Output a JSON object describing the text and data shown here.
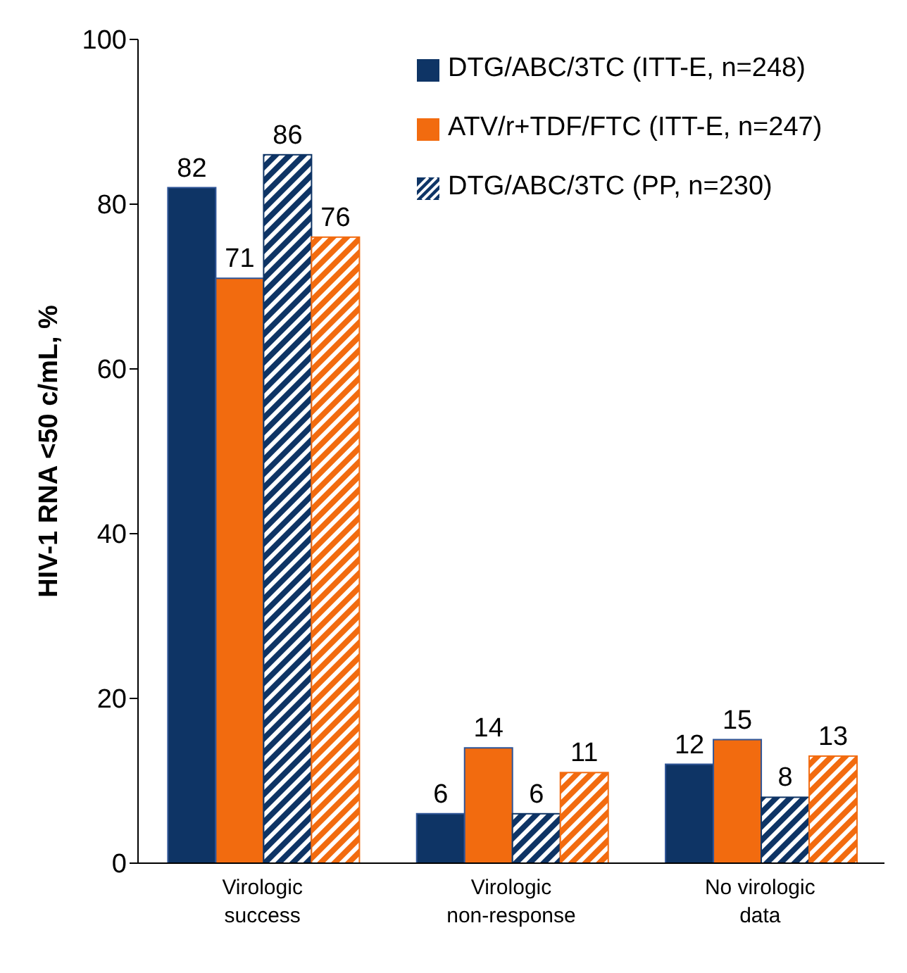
{
  "chart_data": {
    "type": "bar",
    "ylabel": "HIV-1 RNA <50 c/mL, %",
    "categories": [
      "Virologic success",
      "Virologic non-response",
      "No virologic data"
    ],
    "series": [
      {
        "name": "DTG/ABC/3TC (ITT-E, n=248)",
        "color": "#0e3465",
        "values": [
          82,
          6,
          12
        ]
      },
      {
        "name": "ATV/r+TDF/FTC (ITT-E, n=247)",
        "color": "#f26b0f",
        "values": [
          71,
          14,
          15
        ]
      },
      {
        "name": "DTG/ABC/3TC (PP, n=230)",
        "color": "#0e3465",
        "values": [
          86,
          6,
          8
        ]
      },
      {
        "color": "#f26b0f",
        "values": [
          76,
          11,
          13
        ]
      }
    ],
    "ylim": [
      0,
      100
    ],
    "yticks": [
      0,
      20,
      40,
      60,
      80,
      100
    ],
    "data_labels": true,
    "legend": "top right",
    "grid": false
  }
}
